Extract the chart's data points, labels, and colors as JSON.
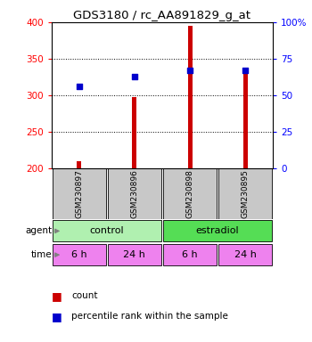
{
  "title": "GDS3180 / rc_AA891829_g_at",
  "samples": [
    "GSM230897",
    "GSM230896",
    "GSM230898",
    "GSM230895"
  ],
  "counts": [
    210,
    298,
    395,
    330
  ],
  "percentiles": [
    312,
    326,
    334,
    334
  ],
  "ylim_left": [
    200,
    400
  ],
  "ylim_right": [
    0,
    100
  ],
  "yticks_left": [
    200,
    250,
    300,
    350,
    400
  ],
  "yticks_right": [
    0,
    25,
    50,
    75,
    100
  ],
  "ytick_labels_right": [
    "0",
    "25",
    "50",
    "75",
    "100%"
  ],
  "time_labels": [
    "6 h",
    "24 h",
    "6 h",
    "24 h"
  ],
  "time_color": "#ee82ee",
  "bar_color": "#cc0000",
  "dot_color": "#0000cc",
  "sample_box_color": "#c8c8c8",
  "control_color": "#b0f0b0",
  "estradiol_color": "#55dd55",
  "legend_count_color": "#cc0000",
  "legend_pct_color": "#0000cc"
}
